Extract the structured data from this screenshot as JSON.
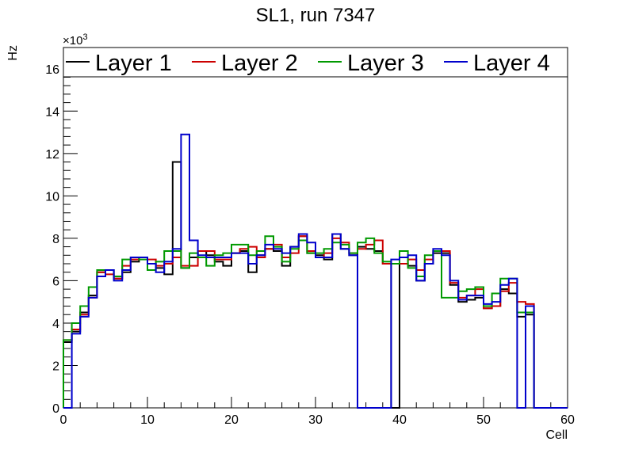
{
  "chart_data": {
    "type": "line",
    "title": "SL1, run 7347",
    "xlabel": "Cell",
    "ylabel": "Hz",
    "y_multiplier_base": "×10",
    "y_multiplier_exponent": "3",
    "xlim": [
      0,
      60
    ],
    "ylim": [
      0,
      17
    ],
    "x_ticks": [
      "0",
      "10",
      "20",
      "30",
      "40",
      "50",
      "60"
    ],
    "y_ticks": [
      "0",
      "2",
      "4",
      "6",
      "8",
      "10",
      "12",
      "14",
      "16"
    ],
    "grid": false,
    "legend_position": "top",
    "bin_edges_start": 0,
    "bin_width": 1,
    "series": [
      {
        "name": "Layer 1",
        "color": "#000000",
        "values": [
          3.1,
          3.6,
          4.5,
          5.3,
          6.4,
          6.5,
          6.1,
          6.4,
          6.9,
          7.1,
          6.8,
          6.6,
          6.3,
          11.6,
          6.6,
          7.1,
          7.4,
          7.2,
          6.9,
          6.7,
          7.3,
          7.4,
          6.4,
          7.2,
          7.5,
          7.4,
          6.7,
          7.6,
          8.1,
          7.3,
          7.2,
          7.0,
          8.2,
          7.5,
          7.2,
          7.6,
          7.5,
          7.4,
          6.8,
          0.0,
          6.8,
          6.7,
          6.0,
          6.8,
          7.3,
          7.3,
          5.8,
          5.0,
          5.1,
          5.2,
          4.7,
          4.8,
          5.6,
          5.4,
          4.3,
          4.4,
          0,
          0,
          0,
          0
        ]
      },
      {
        "name": "Layer 2",
        "color": "#cc0000",
        "values": [
          3.2,
          3.7,
          4.4,
          5.2,
          6.4,
          6.3,
          6.1,
          6.7,
          7.0,
          7.1,
          7.0,
          6.7,
          6.8,
          7.1,
          6.7,
          6.7,
          7.4,
          7.4,
          7.0,
          7.0,
          7.3,
          7.5,
          7.6,
          7.1,
          7.5,
          7.7,
          7.1,
          7.3,
          8.1,
          7.4,
          7.1,
          7.3,
          8.0,
          7.8,
          7.3,
          7.5,
          7.7,
          7.9,
          6.8,
          6.8,
          6.8,
          7.0,
          6.5,
          7.0,
          7.4,
          7.4,
          5.9,
          5.2,
          5.3,
          5.6,
          4.7,
          4.8,
          5.5,
          5.9,
          5.0,
          4.9,
          0,
          0,
          0,
          0
        ]
      },
      {
        "name": "Layer 3",
        "color": "#009900",
        "values": [
          3.2,
          4.0,
          4.8,
          5.7,
          6.5,
          6.5,
          6.2,
          7.0,
          7.1,
          7.0,
          6.5,
          6.9,
          7.4,
          7.4,
          6.6,
          7.3,
          7.1,
          6.7,
          7.2,
          7.3,
          7.7,
          7.7,
          7.2,
          7.4,
          8.1,
          7.6,
          6.9,
          7.5,
          7.9,
          7.3,
          7.3,
          7.5,
          7.8,
          7.7,
          7.3,
          7.8,
          8.0,
          7.3,
          6.9,
          6.8,
          7.4,
          6.6,
          6.2,
          7.2,
          7.4,
          5.2,
          5.2,
          5.5,
          5.6,
          5.7,
          4.8,
          5.4,
          6.1,
          6.1,
          4.5,
          4.5,
          0,
          0,
          0,
          0
        ]
      },
      {
        "name": "Layer 4",
        "color": "#0000cc",
        "values": [
          0.0,
          3.5,
          4.3,
          5.2,
          6.2,
          6.5,
          6.0,
          6.5,
          7.1,
          7.1,
          6.8,
          6.4,
          6.9,
          7.5,
          12.9,
          7.9,
          7.2,
          7.1,
          7.1,
          7.1,
          7.3,
          7.3,
          6.8,
          7.2,
          7.7,
          7.5,
          7.3,
          7.6,
          8.2,
          7.8,
          7.1,
          7.1,
          8.2,
          7.5,
          7.2,
          0.0,
          0.0,
          0.0,
          0.0,
          7.0,
          7.1,
          7.2,
          6.0,
          6.8,
          7.5,
          7.2,
          6.0,
          5.1,
          5.3,
          5.3,
          4.9,
          5.0,
          5.8,
          6.1,
          0.0,
          4.8,
          0,
          0,
          0,
          0
        ]
      }
    ]
  }
}
